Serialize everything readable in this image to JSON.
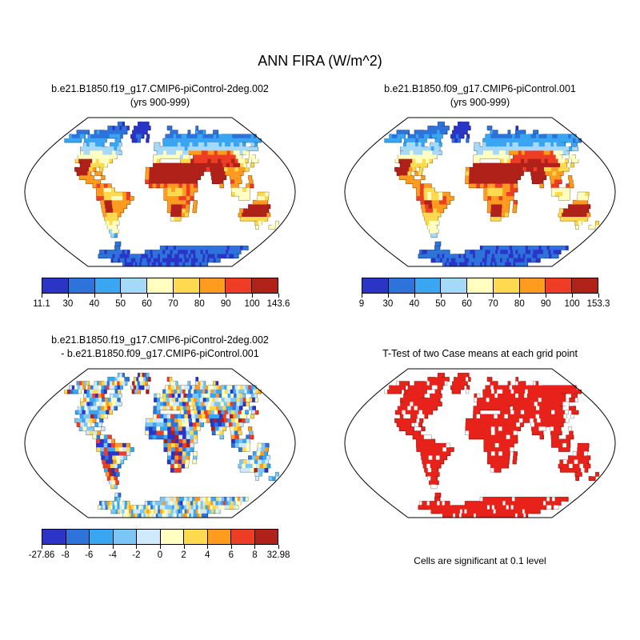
{
  "title": "ANN FIRA (W/m^2)",
  "panels": [
    {
      "title_line1": "b.e21.B1850.f19_g17.CMIP6-piControl-2deg.002",
      "title_line2": "(yrs 900-999)",
      "type": "climatology",
      "seed": 1,
      "colorbar": {
        "colors": [
          "#2a35c8",
          "#2d73da",
          "#3aa5f0",
          "#a6d8f7",
          "#ffffc2",
          "#ffd94e",
          "#ff9c20",
          "#ed3d24",
          "#b0211a"
        ],
        "ticks": [
          "11.1",
          "30",
          "40",
          "50",
          "60",
          "70",
          "80",
          "90",
          "100",
          "143.6"
        ]
      }
    },
    {
      "title_line1": "b.e21.B1850.f09_g17.CMIP6-piControl.001",
      "title_line2": "(yrs 900-999)",
      "type": "climatology",
      "seed": 2,
      "colorbar": {
        "colors": [
          "#2a35c8",
          "#2d73da",
          "#3aa5f0",
          "#a6d8f7",
          "#ffffc2",
          "#ffd94e",
          "#ff9c20",
          "#ed3d24",
          "#b0211a"
        ],
        "ticks": [
          "9",
          "30",
          "40",
          "50",
          "60",
          "70",
          "80",
          "90",
          "100",
          "153.3"
        ]
      }
    },
    {
      "title_line1": "b.e21.B1850.f19_g17.CMIP6-piControl-2deg.002",
      "title_line2": "- b.e21.B1850.f09_g17.CMIP6-piControl.001",
      "type": "difference",
      "seed": 3,
      "colorbar": {
        "colors": [
          "#2a35c8",
          "#2d73da",
          "#3aa5f0",
          "#7cc6f5",
          "#cfeafc",
          "#ffffc2",
          "#ffd94e",
          "#ff9c20",
          "#ed3d24",
          "#b0211a"
        ],
        "ticks": [
          "-27.86",
          "-8",
          "-6",
          "-4",
          "-2",
          "0",
          "2",
          "4",
          "6",
          "8",
          "32.98"
        ]
      }
    },
    {
      "title_line1": "T-Test of two Case means at each grid point",
      "type": "ttest",
      "seed": 4,
      "significant_color": "#e7221a",
      "caption": "Cells are significant at 0.1 level"
    }
  ],
  "chart_data": [
    {
      "type": "heatmap",
      "subtype": "global map, robinson projection",
      "variable": "FIRA",
      "season": "ANN",
      "units": "W/m^2",
      "title": "b.e21.B1850.f19_g17.CMIP6-piControl-2deg.002 (yrs 900-999)",
      "min": 11.1,
      "max": 143.6,
      "contour_levels": [
        30,
        40,
        50,
        60,
        70,
        80,
        90,
        100
      ],
      "palette": [
        "#2a35c8",
        "#2d73da",
        "#3aa5f0",
        "#a6d8f7",
        "#ffffc2",
        "#ffd94e",
        "#ff9c20",
        "#ed3d24",
        "#b0211a"
      ],
      "legend_position": "below",
      "ocean": "masked (white)"
    },
    {
      "type": "heatmap",
      "subtype": "global map, robinson projection",
      "variable": "FIRA",
      "season": "ANN",
      "units": "W/m^2",
      "title": "b.e21.B1850.f09_g17.CMIP6-piControl.001 (yrs 900-999)",
      "min": 9,
      "max": 153.3,
      "contour_levels": [
        30,
        40,
        50,
        60,
        70,
        80,
        90,
        100
      ],
      "palette": [
        "#2a35c8",
        "#2d73da",
        "#3aa5f0",
        "#a6d8f7",
        "#ffffc2",
        "#ffd94e",
        "#ff9c20",
        "#ed3d24",
        "#b0211a"
      ],
      "legend_position": "below",
      "ocean": "masked (white)"
    },
    {
      "type": "heatmap",
      "subtype": "global map, robinson projection, case difference",
      "variable": "FIRA difference",
      "units": "W/m^2",
      "title": "b.e21.B1850.f19_g17.CMIP6-piControl-2deg.002 - b.e21.B1850.f09_g17.CMIP6-piControl.001",
      "min": -27.86,
      "max": 32.98,
      "contour_levels": [
        -8,
        -6,
        -4,
        -2,
        0,
        2,
        4,
        6,
        8
      ],
      "palette": [
        "#2a35c8",
        "#2d73da",
        "#3aa5f0",
        "#7cc6f5",
        "#cfeafc",
        "#ffffc2",
        "#ffd94e",
        "#ff9c20",
        "#ed3d24",
        "#b0211a"
      ],
      "legend_position": "below",
      "ocean": "masked (white)"
    },
    {
      "type": "heatmap",
      "subtype": "global map, robinson projection, significance mask",
      "title": "T-Test of two Case means at each grid point",
      "annotation": "Cells are significant at 0.1 level",
      "significant_color": "#e7221a",
      "insignificant_color": "#ffffff"
    }
  ]
}
